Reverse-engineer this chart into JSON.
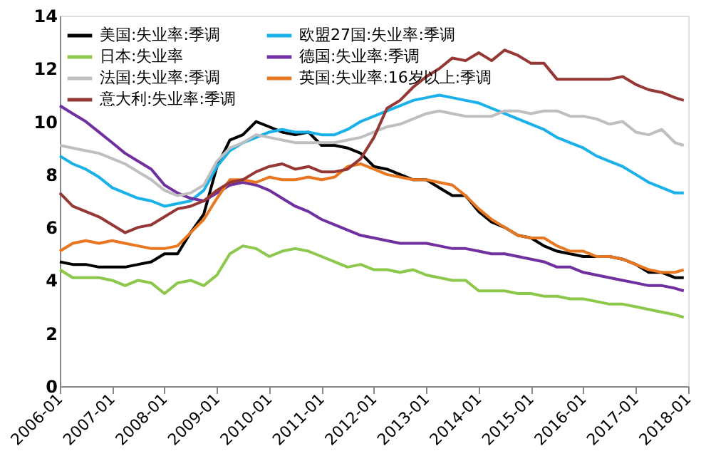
{
  "chart_data": {
    "type": "line",
    "xlim": [
      "2006-01",
      "2018-01"
    ],
    "xticks": [
      "2006-01",
      "2007-01",
      "2008-01",
      "2009-01",
      "2010-01",
      "2011-01",
      "2012-01",
      "2013-01",
      "2014-01",
      "2015-01",
      "2016-01",
      "2017-01",
      "2018-01"
    ],
    "ylim": [
      0,
      14
    ],
    "yticks": [
      0,
      2,
      4,
      6,
      8,
      10,
      12,
      14
    ],
    "grid": false,
    "legend": "top",
    "marker": "none",
    "line_style": "solid",
    "x": [
      "2006-01",
      "2006-04",
      "2006-07",
      "2006-10",
      "2007-01",
      "2007-04",
      "2007-07",
      "2007-10",
      "2008-01",
      "2008-04",
      "2008-07",
      "2008-10",
      "2009-01",
      "2009-04",
      "2009-07",
      "2009-10",
      "2010-01",
      "2010-04",
      "2010-07",
      "2010-10",
      "2011-01",
      "2011-04",
      "2011-07",
      "2011-10",
      "2012-01",
      "2012-04",
      "2012-07",
      "2012-10",
      "2013-01",
      "2013-04",
      "2013-07",
      "2013-10",
      "2014-01",
      "2014-04",
      "2014-07",
      "2014-10",
      "2015-01",
      "2015-04",
      "2015-07",
      "2015-10",
      "2016-01",
      "2016-04",
      "2016-07",
      "2016-10",
      "2017-01",
      "2017-04",
      "2017-07",
      "2017-10",
      "2017-12"
    ],
    "series": [
      {
        "name": "美国:失业率:季调",
        "color": "#000000",
        "values": [
          4.7,
          4.6,
          4.6,
          4.5,
          4.5,
          4.5,
          4.6,
          4.7,
          5.0,
          5.0,
          5.8,
          6.5,
          8.3,
          9.3,
          9.5,
          10.0,
          9.8,
          9.6,
          9.5,
          9.6,
          9.1,
          9.1,
          9.0,
          8.8,
          8.3,
          8.2,
          8.0,
          7.8,
          7.8,
          7.5,
          7.2,
          7.2,
          6.6,
          6.2,
          6.0,
          5.7,
          5.6,
          5.3,
          5.1,
          5.0,
          4.9,
          4.9,
          4.9,
          4.8,
          4.6,
          4.3,
          4.3,
          4.1,
          4.1
        ]
      },
      {
        "name": "欧盟27国:失业率:季调",
        "color": "#1ab0e8",
        "values": [
          8.7,
          8.4,
          8.2,
          7.9,
          7.5,
          7.3,
          7.1,
          7.0,
          6.8,
          6.9,
          7.0,
          7.4,
          8.3,
          8.9,
          9.2,
          9.4,
          9.6,
          9.7,
          9.6,
          9.6,
          9.5,
          9.5,
          9.7,
          10.0,
          10.2,
          10.4,
          10.6,
          10.8,
          10.9,
          11.0,
          10.9,
          10.8,
          10.7,
          10.5,
          10.3,
          10.1,
          9.9,
          9.7,
          9.4,
          9.2,
          9.0,
          8.7,
          8.5,
          8.3,
          8.0,
          7.7,
          7.5,
          7.3,
          7.3
        ]
      },
      {
        "name": "日本:失业率",
        "color": "#8cc84b",
        "values": [
          4.4,
          4.1,
          4.1,
          4.1,
          4.0,
          3.8,
          4.0,
          3.9,
          3.5,
          3.9,
          4.0,
          3.8,
          4.2,
          5.0,
          5.3,
          5.2,
          4.9,
          5.1,
          5.2,
          5.1,
          4.9,
          4.7,
          4.5,
          4.6,
          4.4,
          4.4,
          4.3,
          4.4,
          4.2,
          4.1,
          4.0,
          4.0,
          3.6,
          3.6,
          3.6,
          3.5,
          3.5,
          3.4,
          3.4,
          3.3,
          3.3,
          3.2,
          3.1,
          3.1,
          3.0,
          2.9,
          2.8,
          2.7,
          2.6
        ]
      },
      {
        "name": "德国:失业率:季调",
        "color": "#7030a0",
        "values": [
          10.6,
          10.3,
          10.0,
          9.6,
          9.2,
          8.8,
          8.5,
          8.2,
          7.6,
          7.3,
          7.1,
          7.0,
          7.3,
          7.6,
          7.7,
          7.6,
          7.4,
          7.1,
          6.8,
          6.6,
          6.3,
          6.1,
          5.9,
          5.7,
          5.6,
          5.5,
          5.4,
          5.4,
          5.4,
          5.3,
          5.2,
          5.2,
          5.1,
          5.0,
          5.0,
          4.9,
          4.8,
          4.7,
          4.5,
          4.5,
          4.3,
          4.2,
          4.1,
          4.0,
          3.9,
          3.8,
          3.8,
          3.7,
          3.6
        ]
      },
      {
        "name": "法国:失业率:季调",
        "color": "#bfbfbf",
        "values": [
          9.1,
          9.0,
          8.9,
          8.8,
          8.6,
          8.4,
          8.1,
          7.8,
          7.4,
          7.2,
          7.3,
          7.6,
          8.5,
          9.0,
          9.2,
          9.5,
          9.4,
          9.3,
          9.2,
          9.2,
          9.2,
          9.2,
          9.3,
          9.4,
          9.6,
          9.8,
          9.9,
          10.1,
          10.3,
          10.4,
          10.3,
          10.2,
          10.2,
          10.2,
          10.4,
          10.4,
          10.3,
          10.4,
          10.4,
          10.2,
          10.2,
          10.1,
          9.9,
          10.0,
          9.6,
          9.5,
          9.7,
          9.2,
          9.1
        ]
      },
      {
        "name": "英国:失业率:16岁以上:季调",
        "color": "#e87722",
        "values": [
          5.1,
          5.4,
          5.5,
          5.4,
          5.5,
          5.4,
          5.3,
          5.2,
          5.2,
          5.3,
          5.8,
          6.3,
          7.1,
          7.8,
          7.8,
          7.7,
          7.9,
          7.8,
          7.8,
          7.9,
          7.8,
          7.9,
          8.3,
          8.4,
          8.2,
          8.0,
          7.9,
          7.8,
          7.8,
          7.7,
          7.6,
          7.2,
          6.7,
          6.3,
          6.0,
          5.7,
          5.6,
          5.6,
          5.3,
          5.1,
          5.1,
          4.9,
          4.9,
          4.8,
          4.6,
          4.4,
          4.3,
          4.3,
          4.4
        ]
      },
      {
        "name": "意大利:失业率:季调",
        "color": "#953735",
        "values": [
          7.3,
          6.8,
          6.6,
          6.4,
          6.1,
          5.8,
          6.0,
          6.1,
          6.4,
          6.7,
          6.8,
          7.0,
          7.4,
          7.7,
          7.8,
          8.1,
          8.3,
          8.4,
          8.2,
          8.3,
          8.1,
          8.1,
          8.2,
          8.6,
          9.4,
          10.5,
          10.8,
          11.3,
          11.7,
          12.0,
          12.4,
          12.3,
          12.6,
          12.3,
          12.7,
          12.5,
          12.2,
          12.2,
          11.6,
          11.6,
          11.6,
          11.6,
          11.6,
          11.7,
          11.4,
          11.2,
          11.1,
          10.9,
          10.8
        ]
      }
    ]
  }
}
